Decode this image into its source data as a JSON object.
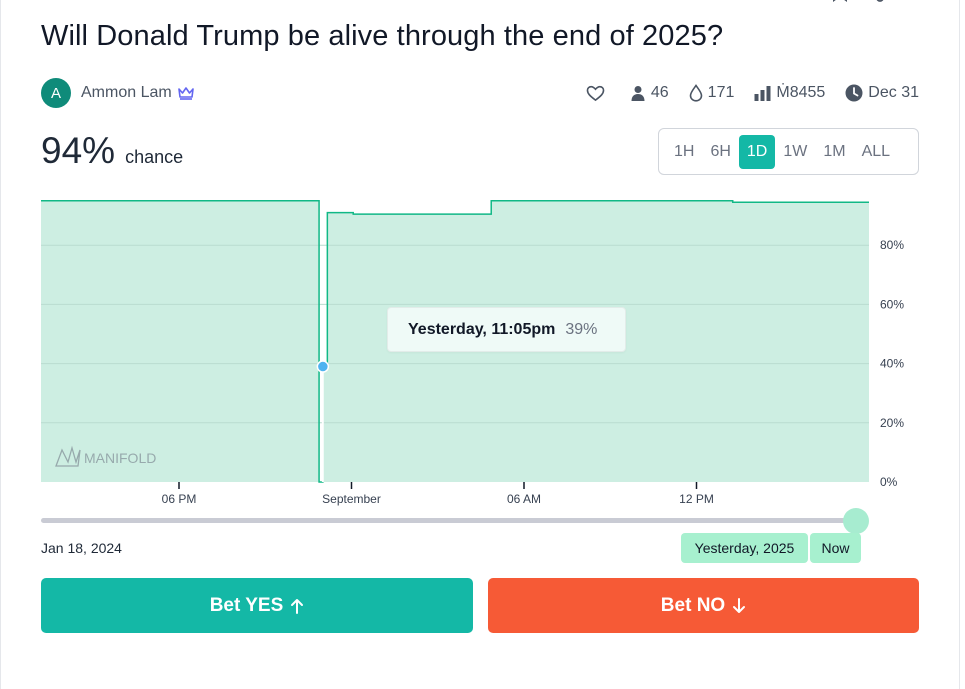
{
  "market": {
    "title": "Will Donald Trump be alive through the end of 2025?",
    "author_initial": "A",
    "author_name": "Ammon Lam",
    "author_badge_icon": "crown-icon",
    "probability": "94%",
    "probability_label": "chance"
  },
  "stats": {
    "like_icon": "heart-icon",
    "traders_icon": "person-icon",
    "traders": "46",
    "bounty_icon": "droplet-icon",
    "bounty": "171",
    "volume_icon": "bar-chart-icon",
    "volume": "Ṁ8455",
    "close_icon": "clock-icon",
    "close_date": "Dec 31"
  },
  "range_buttons": [
    {
      "label": "1H"
    },
    {
      "label": "6H"
    },
    {
      "label": "1D",
      "active": true
    },
    {
      "label": "1W"
    },
    {
      "label": "1M"
    },
    {
      "label": "ALL"
    }
  ],
  "chart_data": {
    "type": "area",
    "y_unit": "%",
    "ylim": [
      0,
      100
    ],
    "y_ticks": [
      "0%",
      "20%",
      "40%",
      "60%",
      "80%"
    ],
    "x_ticks": [
      "06 PM",
      "September",
      "06 AM",
      "12 PM"
    ],
    "grid": true,
    "watermark": "MANIFOLD",
    "x_domain_hours": [
      0,
      24
    ],
    "series": [
      {
        "x_hours": [
          0,
          8.04,
          8.06,
          8.17,
          8.27,
          8.3,
          9.05,
          13,
          13.05,
          20.05
        ],
        "values": [
          95,
          95,
          0,
          39,
          39,
          91,
          90.5,
          90.5,
          95,
          94.5
        ]
      }
    ],
    "highlight": {
      "x_hours": 8.17,
      "value": 39
    },
    "colors": {
      "line": "#11b886",
      "fill": "#cdeee2",
      "marker": "#4fb3f0"
    }
  },
  "tooltip": {
    "time": "Yesterday, 11:05pm",
    "value": "39%"
  },
  "time_slider": {
    "start_date": "Jan 18, 2024",
    "end_label": "Yesterday, 2025",
    "now_label": "Now"
  },
  "actions": {
    "bet_yes": "Bet YES",
    "bet_no": "Bet NO"
  }
}
